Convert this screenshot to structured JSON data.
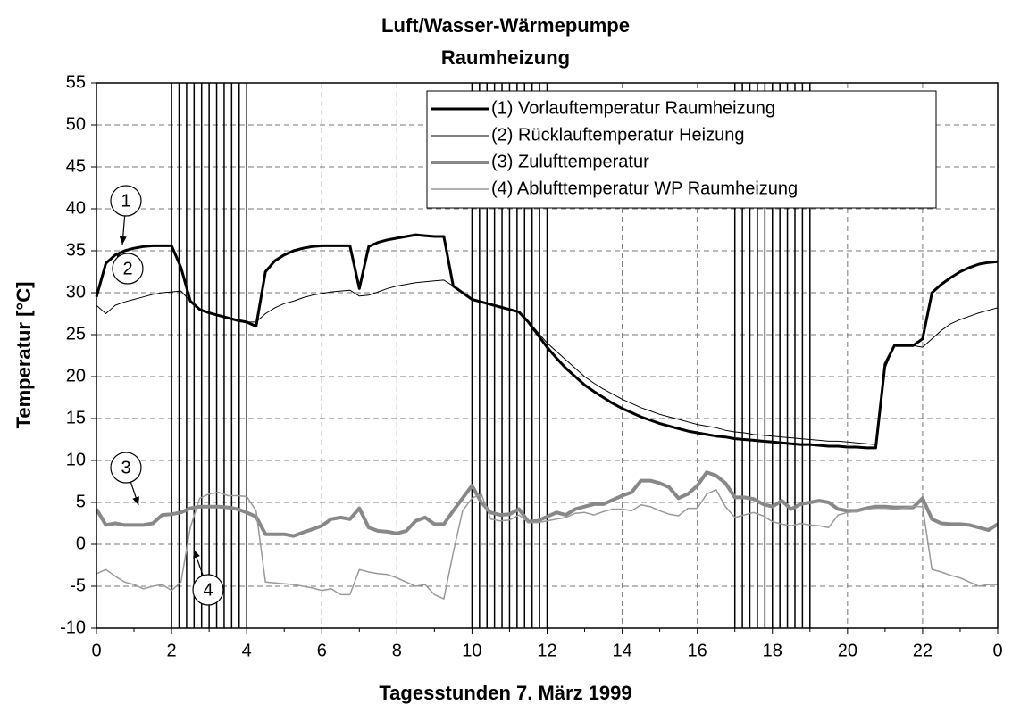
{
  "chart_data": {
    "type": "line",
    "title": "Luft/Wasser-Wärmepumpe",
    "subtitle": "Raumheizung",
    "x_label": "Tagesstunden 7. März 1999",
    "y_label": "Temperatur [°C]",
    "xlim": [
      0,
      24
    ],
    "xticks": [
      0,
      2,
      4,
      6,
      8,
      10,
      12,
      14,
      16,
      18,
      20,
      22,
      {
        "value": 24,
        "label": "0"
      }
    ],
    "ylim": [
      -10,
      55
    ],
    "yticks": [
      -10,
      -5,
      0,
      5,
      10,
      15,
      20,
      25,
      30,
      35,
      40,
      45,
      50,
      55
    ],
    "grid": true,
    "legend": "upper right",
    "vertical_lines": [
      2,
      2.2,
      2.4,
      2.6,
      2.8,
      3,
      3.2,
      3.4,
      3.6,
      3.8,
      4,
      10,
      10.2,
      10.4,
      10.6,
      10.8,
      11,
      11.2,
      11.4,
      11.6,
      11.8,
      12,
      17,
      17.2,
      17.4,
      17.6,
      17.8,
      18,
      18.2,
      18.4,
      18.6,
      18.8,
      19
    ],
    "annotations": [
      "1",
      "2",
      "3",
      "4"
    ],
    "x": [
      0,
      0.25,
      0.5,
      0.75,
      1,
      1.25,
      1.5,
      1.75,
      2,
      2.25,
      2.5,
      2.75,
      3,
      3.25,
      3.5,
      3.75,
      4,
      4.25,
      4.5,
      4.75,
      5,
      5.25,
      5.5,
      5.75,
      6,
      6.25,
      6.5,
      6.75,
      7,
      7.25,
      7.5,
      7.75,
      8,
      8.25,
      8.5,
      8.75,
      9,
      9.25,
      9.5,
      9.75,
      10,
      10.25,
      10.5,
      10.75,
      11,
      11.25,
      11.5,
      11.75,
      12,
      12.25,
      12.5,
      12.75,
      13,
      13.25,
      13.5,
      13.75,
      14,
      14.25,
      14.5,
      14.75,
      15,
      15.25,
      15.5,
      15.75,
      16,
      16.25,
      16.5,
      16.75,
      17,
      17.25,
      17.5,
      17.75,
      18,
      18.25,
      18.5,
      18.75,
      19,
      19.25,
      19.5,
      19.75,
      20,
      20.25,
      20.5,
      20.75,
      21,
      21.25,
      21.5,
      21.75,
      22,
      22.25,
      22.5,
      22.75,
      23,
      23.25,
      23.5,
      23.75,
      24
    ],
    "series": [
      {
        "name": "(1) Vorlauftemperatur Raumheizung",
        "color": "#000000",
        "width": 3,
        "values": [
          29.5,
          33.5,
          34.5,
          35,
          35.3,
          35.5,
          35.6,
          35.6,
          35.6,
          33,
          29,
          28,
          27.6,
          27.3,
          27,
          26.7,
          26.5,
          26,
          32.5,
          33.8,
          34.5,
          35,
          35.3,
          35.5,
          35.6,
          35.6,
          35.6,
          35.6,
          30.5,
          35.5,
          36,
          36.3,
          36.5,
          36.7,
          36.9,
          36.8,
          36.7,
          36.7,
          30.8,
          30,
          29.2,
          28.9,
          28.6,
          28.3,
          28,
          27.7,
          26.5,
          25,
          23.5,
          22.2,
          21,
          20,
          19,
          18.2,
          17.5,
          16.8,
          16.2,
          15.7,
          15.2,
          14.8,
          14.4,
          14.1,
          13.8,
          13.5,
          13.3,
          13.1,
          12.9,
          12.8,
          12.6,
          12.5,
          12.4,
          12.3,
          12.2,
          12.1,
          12,
          11.9,
          11.9,
          11.8,
          11.7,
          11.7,
          11.6,
          11.6,
          11.5,
          11.5,
          21.5,
          23.7,
          23.7,
          23.7,
          24.5,
          30,
          31,
          31.8,
          32.5,
          33,
          33.4,
          33.6,
          33.7
        ]
      },
      {
        "name": "(2) Rücklauftemperatur Heizung",
        "color": "#000000",
        "width": 1,
        "values": [
          28.5,
          27.5,
          28.5,
          28.9,
          29.2,
          29.5,
          29.8,
          30,
          30.1,
          30.2,
          29,
          28,
          27.6,
          27.3,
          27,
          26.7,
          26.5,
          26.5,
          27.5,
          28.2,
          28.7,
          29,
          29.4,
          29.7,
          29.9,
          30.1,
          30.2,
          30.3,
          29.6,
          29.7,
          30.1,
          30.5,
          30.8,
          31,
          31.2,
          31.3,
          31.4,
          31.5,
          30.8,
          30,
          29.2,
          28.9,
          28.6,
          28.3,
          28,
          27.7,
          26.6,
          25.3,
          24,
          23,
          22,
          21,
          20,
          19.2,
          18.5,
          17.9,
          17.3,
          16.8,
          16.3,
          15.9,
          15.5,
          15.2,
          14.9,
          14.6,
          14.3,
          14.1,
          13.9,
          13.6,
          13.4,
          13.3,
          13.1,
          13,
          12.9,
          12.8,
          12.7,
          12.6,
          12.5,
          12.4,
          12.3,
          12.3,
          12.2,
          12.1,
          12,
          11.9,
          21,
          23.7,
          23.7,
          23.7,
          23.5,
          24.5,
          25.5,
          26.3,
          26.8,
          27.2,
          27.6,
          27.9,
          28.2
        ]
      },
      {
        "name": "(3) Zulufttemperatur",
        "color": "#888888",
        "width": 4,
        "values": [
          4.2,
          2.3,
          2.5,
          2.3,
          2.3,
          2.3,
          2.5,
          3.5,
          3.6,
          3.8,
          4.3,
          4.5,
          4.5,
          4.5,
          4.4,
          4.2,
          3.8,
          3.3,
          1.2,
          1.2,
          1.2,
          1,
          1.4,
          1.8,
          2.2,
          3,
          3.2,
          3,
          4.3,
          2,
          1.6,
          1.5,
          1.3,
          1.6,
          2.8,
          3.2,
          2.4,
          2.4,
          4,
          5.5,
          7,
          5,
          3.8,
          3.5,
          3.6,
          4.2,
          2.7,
          2.8,
          3.3,
          3.8,
          3.5,
          4.2,
          4.5,
          4.8,
          4.8,
          5.3,
          5.8,
          6.2,
          7.6,
          7.6,
          7.3,
          6.8,
          5.5,
          6,
          7,
          8.6,
          8.2,
          7.3,
          5.6,
          5.6,
          5.4,
          4.8,
          4.5,
          5.2,
          4.2,
          4.8,
          5,
          5.2,
          5,
          4.2,
          4,
          4,
          4.3,
          4.5,
          4.5,
          4.4,
          4.4,
          4.4,
          5.5,
          3,
          2.5,
          2.4,
          2.4,
          2.3,
          2,
          1.7,
          2.4
        ]
      },
      {
        "name": "(4) Ablufttemperatur WP Raumheizung",
        "color": "#999999",
        "width": 1.5,
        "values": [
          -3.5,
          -3,
          -3.8,
          -4.5,
          -4.8,
          -5.3,
          -5,
          -4.8,
          -5.5,
          -4.5,
          2,
          5.5,
          6,
          6.2,
          5.8,
          5.8,
          5.7,
          4,
          -4.5,
          -4.6,
          -4.7,
          -4.8,
          -5,
          -5.2,
          -5.5,
          -5.3,
          -6,
          -6,
          -3,
          -3.3,
          -3.5,
          -3.6,
          -4,
          -4.5,
          -5,
          -4.8,
          -6,
          -6.5,
          -1,
          4,
          5.5,
          6,
          3,
          2.8,
          2.9,
          3.5,
          2.6,
          2.6,
          2.8,
          3,
          3.2,
          3.7,
          3.8,
          3.5,
          3.9,
          4.2,
          4.2,
          4,
          4.7,
          4.5,
          4,
          3.6,
          3.4,
          4.3,
          4.3,
          6,
          6.5,
          4.5,
          3.2,
          3.5,
          3.8,
          3.4,
          2.7,
          2.4,
          2.2,
          2.5,
          2.3,
          2.2,
          2,
          3.5,
          3.8,
          3.9,
          4.2,
          4.3,
          4.3,
          4.2,
          4.3,
          4.5,
          4.5,
          -3,
          -3.3,
          -3.7,
          -4,
          -4.5,
          -5,
          -4.8,
          -4.8
        ]
      }
    ]
  }
}
